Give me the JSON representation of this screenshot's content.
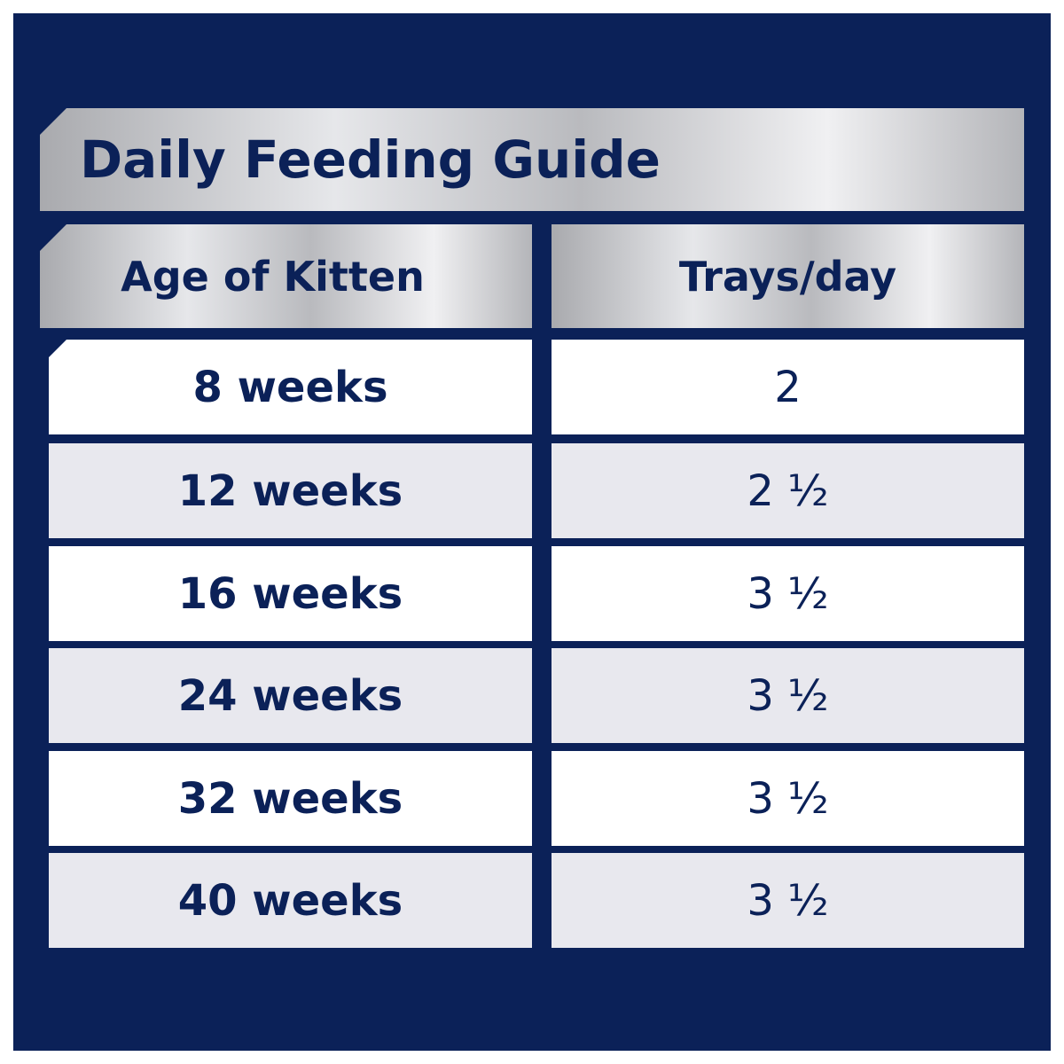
{
  "title": "Daily Feeding Guide",
  "table": {
    "header": [
      "Age of Kitten",
      "Trays/day"
    ],
    "rows": [
      [
        "8 weeks",
        "2"
      ],
      [
        "12 weeks",
        "2 ½"
      ],
      [
        "16 weeks",
        "3 ½"
      ],
      [
        "24 weeks",
        "3 ½"
      ],
      [
        "32 weeks",
        "3 ½"
      ],
      [
        "40 weeks",
        "3 ½"
      ]
    ]
  }
}
